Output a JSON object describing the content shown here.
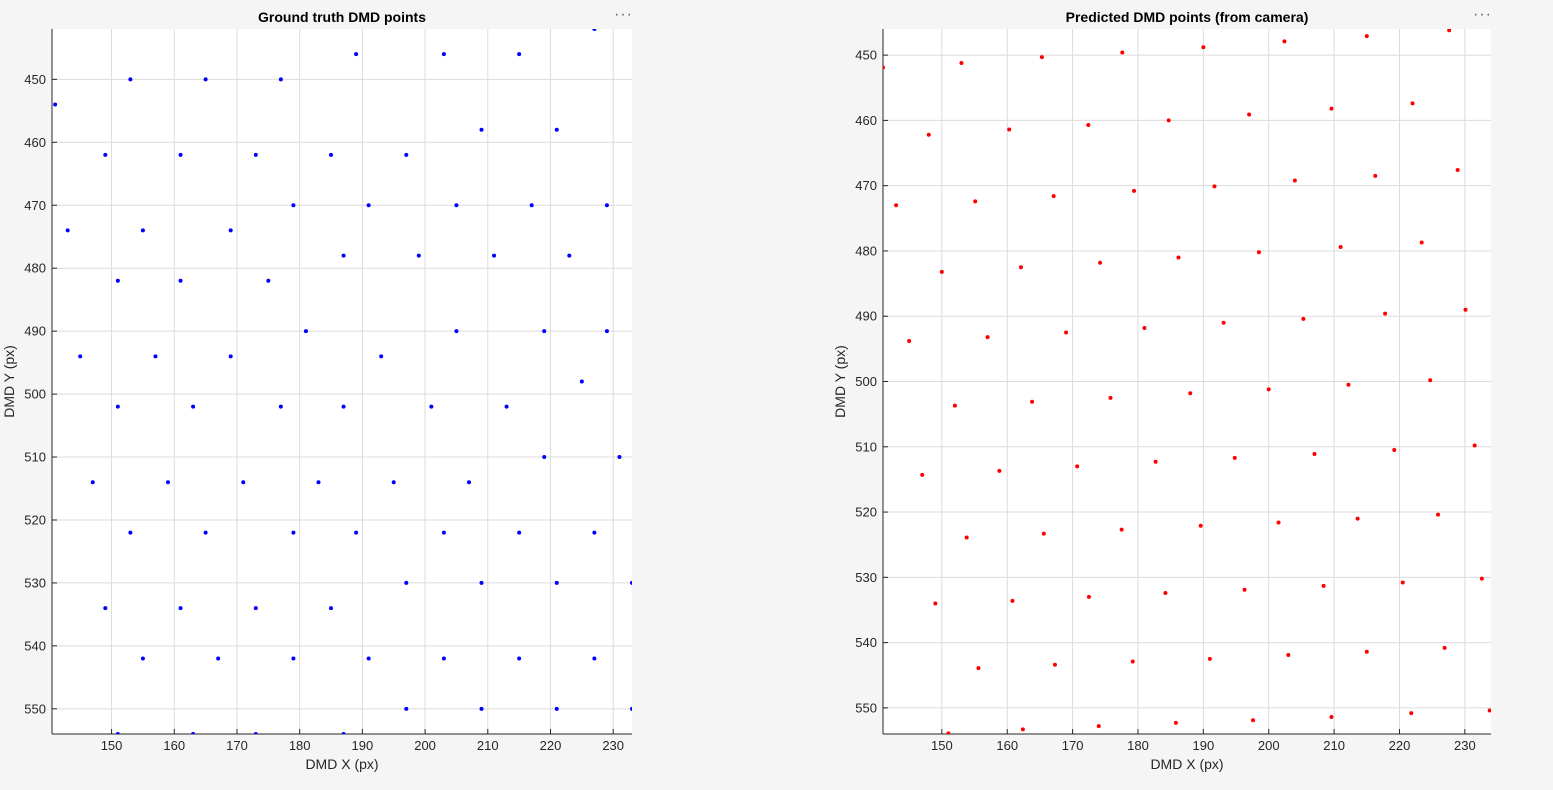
{
  "figure": {
    "toolbar_icon": "ellipsis-menu-icon",
    "toolbar_label": "···"
  },
  "chart_data": [
    {
      "type": "scatter",
      "title": "Ground truth DMD points",
      "xlabel": "DMD X (px)",
      "ylabel": "DMD Y (px)",
      "xlim": [
        140.5,
        233
      ],
      "ylim": [
        554,
        442
      ],
      "y_reversed": true,
      "grid": true,
      "xticks": [
        150,
        160,
        170,
        180,
        190,
        200,
        210,
        220,
        230
      ],
      "yticks": [
        450,
        460,
        470,
        480,
        490,
        500,
        510,
        520,
        530,
        540,
        550
      ],
      "marker_color": "#0000ff",
      "series": [
        {
          "x": [
            227,
            189,
            203,
            215,
            141,
            153,
            165,
            177,
            209,
            221,
            149,
            161,
            173,
            185,
            197,
            179,
            191,
            205,
            217,
            229,
            143,
            155,
            169,
            187,
            199,
            211,
            223,
            151,
            161,
            175,
            181,
            205,
            219,
            229,
            145,
            157,
            169,
            193,
            225,
            151,
            163,
            177,
            187,
            201,
            213,
            219,
            231,
            147,
            159,
            171,
            183,
            195,
            207,
            153,
            165,
            179,
            189,
            203,
            215,
            227,
            197,
            209,
            221,
            233,
            149,
            161,
            173,
            185,
            155,
            167,
            179,
            191,
            203,
            215,
            227,
            197,
            209,
            221,
            233,
            151,
            163,
            173,
            187
          ],
          "y": [
            442,
            446,
            446,
            446,
            454,
            450,
            450,
            450,
            458,
            458,
            462,
            462,
            462,
            462,
            462,
            470,
            470,
            470,
            470,
            470,
            474,
            474,
            474,
            478,
            478,
            478,
            478,
            482,
            482,
            482,
            490,
            490,
            490,
            490,
            494,
            494,
            494,
            494,
            498,
            502,
            502,
            502,
            502,
            502,
            502,
            510,
            510,
            514,
            514,
            514,
            514,
            514,
            514,
            522,
            522,
            522,
            522,
            522,
            522,
            522,
            530,
            530,
            530,
            530,
            534,
            534,
            534,
            534,
            542,
            542,
            542,
            542,
            542,
            542,
            542,
            550,
            550,
            550,
            550,
            554,
            554,
            554,
            554
          ]
        }
      ]
    },
    {
      "type": "scatter",
      "title": "Predicted DMD points (from camera)",
      "xlabel": "DMD X (px)",
      "ylabel": "DMD Y (px)",
      "xlim": [
        141,
        234
      ],
      "ylim": [
        554,
        446
      ],
      "y_reversed": true,
      "grid": true,
      "xticks": [
        150,
        160,
        170,
        180,
        190,
        200,
        210,
        220,
        230
      ],
      "yticks": [
        450,
        460,
        470,
        480,
        490,
        500,
        510,
        520,
        530,
        540,
        550
      ],
      "marker_color": "#ff0000",
      "series": [
        {
          "x": [
            141,
            153,
            165.3,
            177.6,
            190,
            202.4,
            215,
            227.6,
            148,
            160.3,
            172.4,
            184.7,
            197,
            209.6,
            222,
            143,
            155.1,
            167.1,
            179.4,
            191.7,
            204,
            216.3,
            228.9,
            150,
            162.1,
            174.2,
            186.2,
            198.5,
            211,
            223.4,
            145,
            157,
            169,
            181,
            193.1,
            205.3,
            217.8,
            230.1,
            152,
            163.8,
            175.8,
            188,
            200,
            212.2,
            224.7,
            147,
            158.8,
            170.7,
            182.7,
            194.8,
            207,
            219.2,
            231.5,
            153.8,
            165.6,
            177.5,
            189.6,
            201.5,
            213.6,
            225.9,
            149,
            160.8,
            172.5,
            184.2,
            196.3,
            208.4,
            220.5,
            232.6,
            155.6,
            167.3,
            179.2,
            191,
            203,
            215,
            226.9,
            151,
            162.4,
            174,
            185.8,
            197.6,
            209.6,
            221.8,
            233.8
          ],
          "y": [
            451.9,
            451.2,
            450.3,
            449.6,
            448.8,
            447.9,
            447.1,
            446.2,
            462.2,
            461.4,
            460.7,
            460,
            459.1,
            458.2,
            457.4,
            473,
            472.4,
            471.6,
            470.8,
            470.1,
            469.2,
            468.5,
            467.6,
            483.2,
            482.5,
            481.8,
            481,
            480.2,
            479.4,
            478.7,
            493.8,
            493.2,
            492.5,
            491.8,
            491,
            490.4,
            489.6,
            489,
            503.7,
            503.1,
            502.5,
            501.8,
            501.2,
            500.5,
            499.8,
            514.3,
            513.7,
            513,
            512.3,
            511.7,
            511.1,
            510.5,
            509.8,
            523.9,
            523.3,
            522.7,
            522.1,
            521.6,
            521,
            520.4,
            534,
            533.6,
            533,
            532.4,
            531.9,
            531.3,
            530.8,
            530.2,
            543.9,
            543.4,
            542.9,
            542.5,
            541.9,
            541.4,
            540.8,
            553.9,
            553.3,
            552.8,
            552.3,
            551.9,
            551.4,
            550.8,
            550.4
          ]
        }
      ]
    }
  ]
}
